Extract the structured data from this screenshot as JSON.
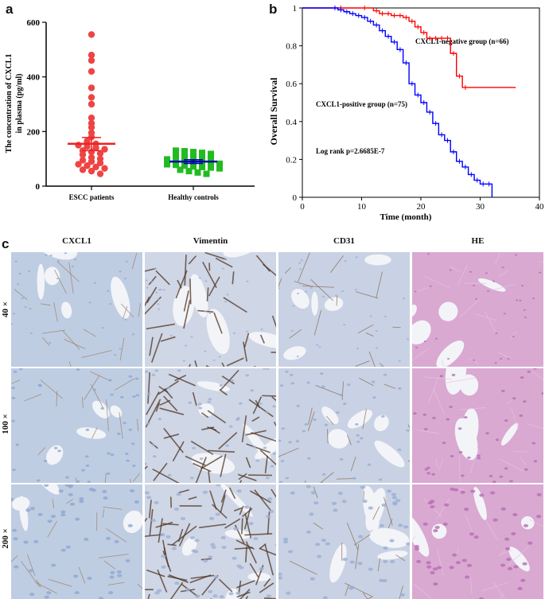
{
  "panels": {
    "a": "a",
    "b": "b",
    "c": "c"
  },
  "chart_data": [
    {
      "type": "scatter",
      "panel": "a",
      "ylabel_line1": "The concentration of CXCL1",
      "ylabel_line2": "in plasma (pg/ml)",
      "ylim": [
        0,
        600
      ],
      "yticks": [
        "0",
        "200",
        "400",
        "600"
      ],
      "categories": [
        "ESCC patients",
        "Healthy controls"
      ],
      "series": [
        {
          "category": "ESCC patients",
          "color": "#ee4444",
          "marker": "circle",
          "mean": 155,
          "sem_low": 130,
          "sem_high": 178,
          "values": [
            555,
            480,
            460,
            420,
            360,
            325,
            300,
            250,
            230,
            215,
            195,
            180,
            165,
            155,
            150,
            145,
            140,
            135,
            130,
            125,
            120,
            115,
            105,
            100,
            95,
            90,
            85,
            80,
            75,
            70,
            65,
            60,
            55,
            45
          ]
        },
        {
          "category": "Healthy controls",
          "color": "#22bb22",
          "marker": "square",
          "mean": 90,
          "sem_low": 83,
          "sem_high": 97,
          "values": [
            130,
            128,
            125,
            122,
            118,
            115,
            112,
            110,
            105,
            100,
            98,
            95,
            92,
            90,
            88,
            85,
            82,
            80,
            78,
            75,
            72,
            70,
            68,
            65,
            60,
            55,
            50,
            45
          ]
        }
      ]
    },
    {
      "type": "line",
      "panel": "b",
      "xlabel": "Time (month)",
      "ylabel": "Overall Survival",
      "xlim": [
        0,
        40
      ],
      "ylim": [
        0,
        1
      ],
      "xticks": [
        "0",
        "10",
        "20",
        "30",
        "40"
      ],
      "yticks": [
        "0",
        "0.2",
        "0.4",
        "0.6",
        "0.8",
        "1"
      ],
      "series": [
        {
          "name": "CXCL1-negative group (n=66)",
          "color": "#ff0000",
          "x": [
            0,
            6,
            10,
            12,
            13,
            14,
            15,
            16,
            17,
            18,
            19,
            20,
            21,
            22,
            23,
            24,
            25,
            26,
            27,
            36
          ],
          "y": [
            1,
            1,
            1,
            0.985,
            0.97,
            0.97,
            0.96,
            0.96,
            0.95,
            0.93,
            0.9,
            0.87,
            0.84,
            0.84,
            0.84,
            0.84,
            0.76,
            0.64,
            0.58,
            0.58
          ]
        },
        {
          "name": "CXCL1-positive group (n=75)",
          "color": "#0000ff",
          "x": [
            0,
            5,
            6,
            7,
            8,
            9,
            10,
            11,
            12,
            13,
            14,
            15,
            16,
            17,
            18,
            19,
            20,
            21,
            22,
            23,
            24,
            25,
            26,
            27,
            28,
            29,
            30,
            31,
            32
          ],
          "y": [
            1,
            1,
            0.99,
            0.98,
            0.97,
            0.96,
            0.95,
            0.93,
            0.91,
            0.88,
            0.85,
            0.82,
            0.78,
            0.71,
            0.6,
            0.54,
            0.5,
            0.45,
            0.39,
            0.33,
            0.3,
            0.24,
            0.19,
            0.16,
            0.12,
            0.09,
            0.07,
            0.07,
            0
          ]
        }
      ],
      "annotation": "Log rank p=2.6685E-7"
    }
  ],
  "panel_c": {
    "columns": [
      "CXCL1",
      "Vimentin",
      "CD31",
      "HE"
    ],
    "rows": [
      "40 ×",
      "100 ×",
      "200 ×"
    ],
    "colors": {
      "stroma_brown": "#7a5a40",
      "ihc_blue": "#b9c8de",
      "he_pink": "#d7a4cf"
    }
  }
}
